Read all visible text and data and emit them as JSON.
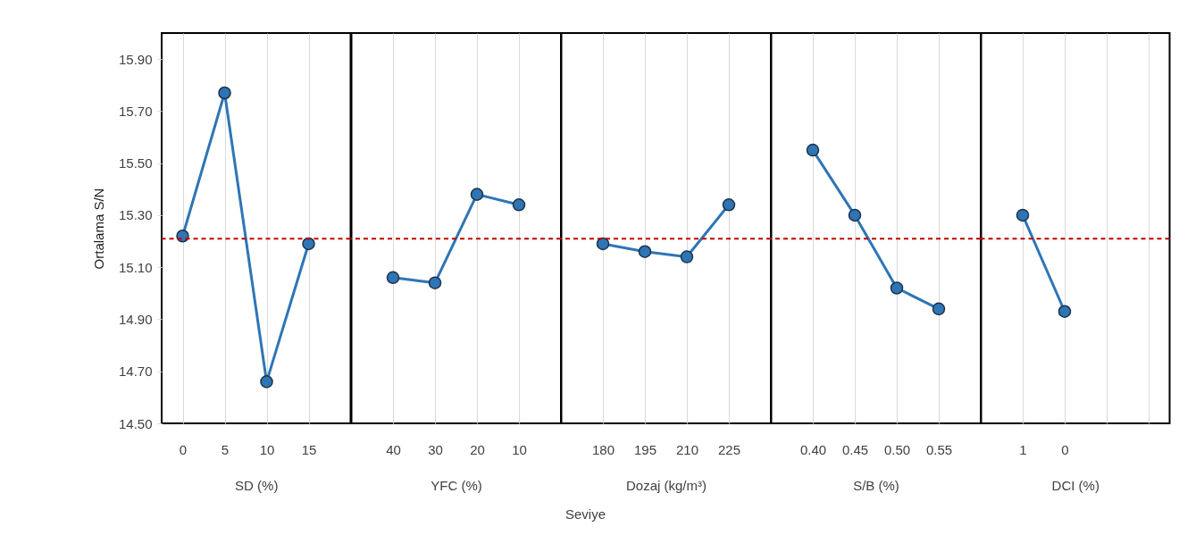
{
  "chart_data": [
    {
      "type": "line",
      "xlabel": "SD (%)",
      "ylabel": "Ortalama S/N",
      "categories": [
        "0",
        "5",
        "10",
        "15"
      ],
      "series": [
        {
          "color": "#2e75b6",
          "values": [
            15.22,
            15.77,
            14.66,
            15.19
          ]
        }
      ],
      "ylim": [
        14.5,
        16.0
      ],
      "yticks": [
        {
          "value": 14.5,
          "label": "14.50"
        },
        {
          "value": 14.7,
          "label": "14.70"
        },
        {
          "value": 14.9,
          "label": "14.90"
        },
        {
          "value": 15.1,
          "label": "15.10"
        },
        {
          "value": 15.3,
          "label": "15.30"
        },
        {
          "value": 15.5,
          "label": "15.50"
        },
        {
          "value": 15.7,
          "label": "15.70"
        },
        {
          "value": 15.9,
          "label": "15.90"
        }
      ],
      "ref_lines": [
        {
          "axis": "y",
          "value": 15.21,
          "color": "#c00000",
          "line_style": "dashed"
        }
      ],
      "grid": "x",
      "marker": "circle",
      "line_style": "solid"
    },
    {
      "type": "line",
      "xlabel": "YFC (%)",
      "categories": [
        "40",
        "30",
        "20",
        "10"
      ],
      "series": [
        {
          "color": "#2e75b6",
          "values": [
            15.06,
            15.04,
            15.38,
            15.34
          ]
        }
      ],
      "ylim": [
        14.5,
        16.0
      ],
      "tick_labels": "x",
      "ref_lines": [
        {
          "axis": "y",
          "value": 15.21,
          "color": "#c00000",
          "line_style": "dashed"
        }
      ],
      "grid": "x",
      "marker": "circle",
      "line_style": "solid"
    },
    {
      "type": "line",
      "xlabel": "Dozaj (kg/m³)",
      "categories": [
        "180",
        "195",
        "210",
        "225"
      ],
      "series": [
        {
          "color": "#2e75b6",
          "values": [
            15.19,
            15.16,
            15.14,
            15.34
          ]
        }
      ],
      "ylim": [
        14.5,
        16.0
      ],
      "tick_labels": "x",
      "annotations": [
        "Seviye"
      ],
      "ref_lines": [
        {
          "axis": "y",
          "value": 15.21,
          "color": "#c00000",
          "line_style": "dashed"
        }
      ],
      "grid": "x",
      "marker": "circle",
      "line_style": "solid"
    },
    {
      "type": "line",
      "xlabel": "S/B (%)",
      "categories": [
        "0.40",
        "0.45",
        "0.50",
        "0.55"
      ],
      "series": [
        {
          "color": "#2e75b6",
          "values": [
            15.55,
            15.3,
            15.02,
            14.94
          ]
        }
      ],
      "ylim": [
        14.5,
        16.0
      ],
      "tick_labels": "x",
      "ref_lines": [
        {
          "axis": "y",
          "value": 15.21,
          "color": "#c00000",
          "line_style": "dashed"
        }
      ],
      "grid": "x",
      "marker": "circle",
      "line_style": "solid"
    },
    {
      "type": "line",
      "xlabel": "DCI (%)",
      "categories": [
        "1",
        "0",
        null,
        null
      ],
      "series": [
        {
          "color": "#2e75b6",
          "values": [
            15.3,
            14.93,
            null,
            null
          ]
        }
      ],
      "ylim": [
        14.5,
        16.0
      ],
      "tick_labels": "x",
      "ref_lines": [
        {
          "axis": "y",
          "value": 15.21,
          "color": "#c00000",
          "line_style": "dashed"
        }
      ],
      "grid": "x",
      "marker": "circle",
      "line_style": "solid"
    }
  ]
}
